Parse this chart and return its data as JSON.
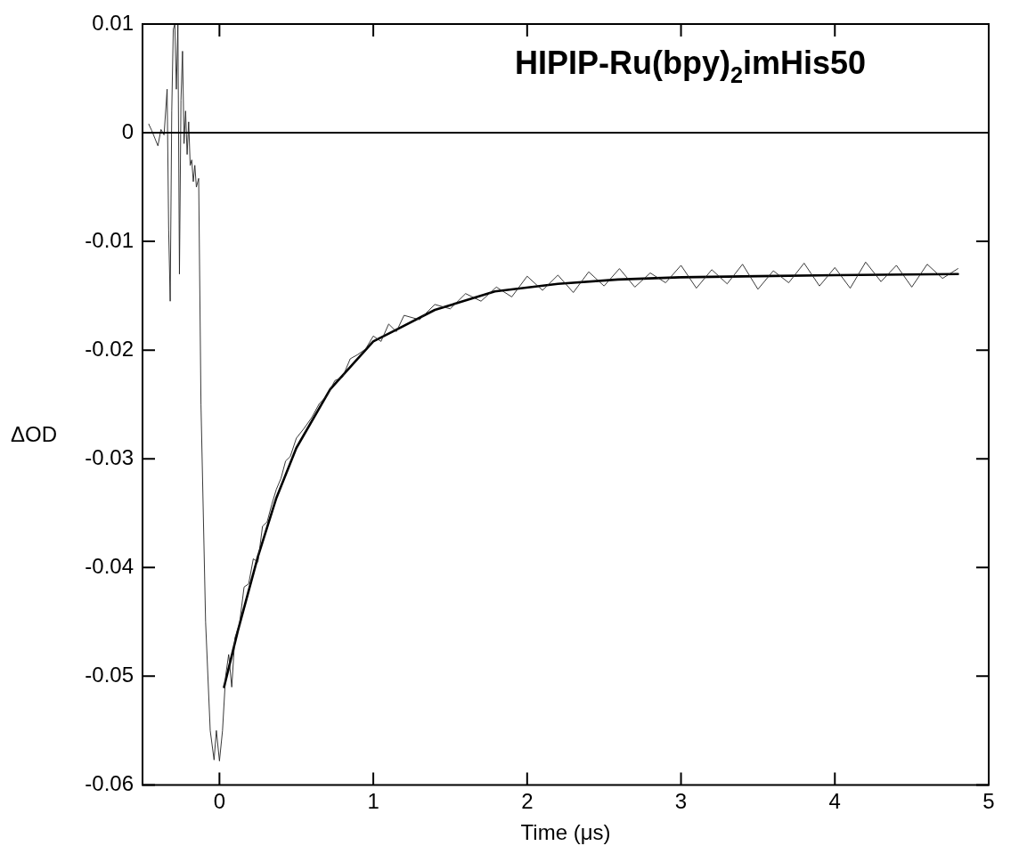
{
  "chart_data": {
    "type": "line",
    "title": "HIPIP-Ru(bpy)$_{2}$imHis50",
    "xlabel": "Time (μs)",
    "ylabel": "ΔOD",
    "xlim": [
      -0.5,
      5
    ],
    "xticks": [
      0,
      1,
      2,
      3,
      4,
      5
    ],
    "ylim": [
      -0.06,
      0.01
    ],
    "yticks": [
      -0.06,
      -0.05,
      -0.04,
      -0.03,
      -0.02,
      -0.01,
      0,
      0.01
    ],
    "grid": false,
    "legend": false,
    "marker": "none",
    "ref_lines": [
      {
        "axis": "y",
        "value": 0,
        "color": "#000000"
      }
    ],
    "series": [
      {
        "color": "#222222",
        "x": [
          -0.46,
          -0.44,
          -0.42,
          -0.4,
          -0.38,
          -0.36,
          -0.34,
          -0.33,
          -0.32,
          -0.31,
          -0.3,
          -0.29,
          -0.28,
          -0.27,
          -0.26,
          -0.25,
          -0.24,
          -0.23,
          -0.22,
          -0.21,
          -0.2,
          -0.19,
          -0.18,
          -0.17,
          -0.16,
          -0.15,
          -0.135,
          -0.12,
          -0.09,
          -0.06,
          -0.035,
          -0.02,
          0,
          0.02,
          0.04,
          0.06,
          0.08,
          0.1,
          0.13,
          0.16,
          0.19,
          0.22,
          0.25,
          0.28,
          0.31,
          0.34,
          0.37,
          0.4,
          0.43,
          0.46,
          0.5,
          0.55,
          0.6,
          0.65,
          0.7,
          0.75,
          0.8,
          0.85,
          0.9,
          0.95,
          1,
          1.05,
          1.1,
          1.15,
          1.2,
          1.3,
          1.4,
          1.5,
          1.6,
          1.7,
          1.8,
          1.9,
          2,
          2.1,
          2.2,
          2.3,
          2.4,
          2.5,
          2.6,
          2.7,
          2.8,
          2.9,
          3,
          3.1,
          3.2,
          3.3,
          3.4,
          3.5,
          3.6,
          3.7,
          3.8,
          3.9,
          4,
          4.1,
          4.2,
          4.3,
          4.4,
          4.5,
          4.6,
          4.7,
          4.8
        ],
        "values": [
          0.0008,
          0.0002,
          -0.0005,
          -0.0012,
          0.0003,
          -0.0002,
          0.004,
          -0.009,
          -0.0155,
          0.002,
          0.0095,
          0.01,
          0.004,
          0.01,
          -0.013,
          0.003,
          0.0075,
          -0.001,
          0.002,
          -0.002,
          0.001,
          -0.003,
          -0.0025,
          -0.0045,
          -0.003,
          -0.005,
          -0.0042,
          -0.025,
          -0.045,
          -0.055,
          -0.0577,
          -0.055,
          -0.0578,
          -0.055,
          -0.05,
          -0.048,
          -0.051,
          -0.0465,
          -0.0452,
          -0.0418,
          -0.0415,
          -0.0392,
          -0.0395,
          -0.0362,
          -0.0358,
          -0.0342,
          -0.0328,
          -0.0318,
          -0.0302,
          -0.0298,
          -0.0281,
          -0.0272,
          -0.0262,
          -0.0249,
          -0.0242,
          -0.0228,
          -0.0225,
          -0.0208,
          -0.0204,
          -0.0199,
          -0.0187,
          -0.0192,
          -0.0176,
          -0.0183,
          -0.0168,
          -0.0172,
          -0.0158,
          -0.0162,
          -0.0148,
          -0.0155,
          -0.0142,
          -0.0151,
          -0.0132,
          -0.0145,
          -0.0131,
          -0.0147,
          -0.0128,
          -0.0141,
          -0.0125,
          -0.0142,
          -0.0129,
          -0.0138,
          -0.0122,
          -0.0143,
          -0.0126,
          -0.0139,
          -0.0121,
          -0.0144,
          -0.0127,
          -0.0138,
          -0.012,
          -0.0141,
          -0.0124,
          -0.0143,
          -0.0119,
          -0.0137,
          -0.0122,
          -0.0142,
          -0.0121,
          -0.0134,
          -0.0125
        ]
      },
      {
        "color": "#000000",
        "x": [
          0.03,
          0.12,
          0.25,
          0.37,
          0.5,
          0.72,
          1,
          1.14,
          1.4,
          1.79,
          2.2,
          2.59,
          3,
          3.5,
          4,
          4.8
        ],
        "values": [
          -0.051,
          -0.0458,
          -0.039,
          -0.0336,
          -0.029,
          -0.0236,
          -0.0192,
          -0.0182,
          -0.0163,
          -0.0146,
          -0.0139,
          -0.0135,
          -0.0133,
          -0.0132,
          -0.0131,
          -0.013
        ]
      }
    ]
  }
}
